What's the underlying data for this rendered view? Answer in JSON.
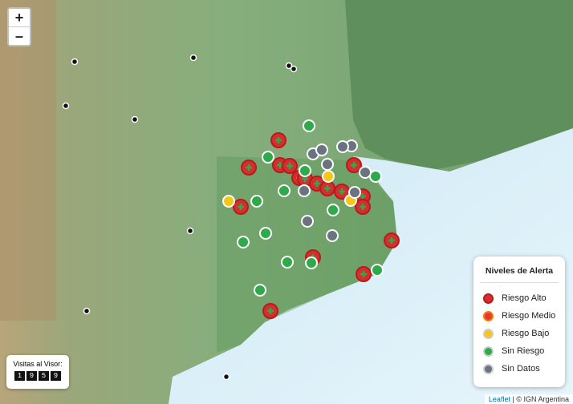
{
  "zoom": {
    "in": "+",
    "out": "–"
  },
  "legend": {
    "title": "Niveles de Alerta",
    "items": [
      "Riesgo Alto",
      "Riesgo Medio",
      "Riesgo Bajo",
      "Sin Riesgo",
      "Sin Datos"
    ]
  },
  "visits": {
    "label": "Visitas al Visor:",
    "digits": [
      "1",
      "9",
      "5",
      "9"
    ]
  },
  "attribution": {
    "leaflet": "Leaflet",
    "separator": "|",
    "source": "© IGN Argentina"
  }
}
